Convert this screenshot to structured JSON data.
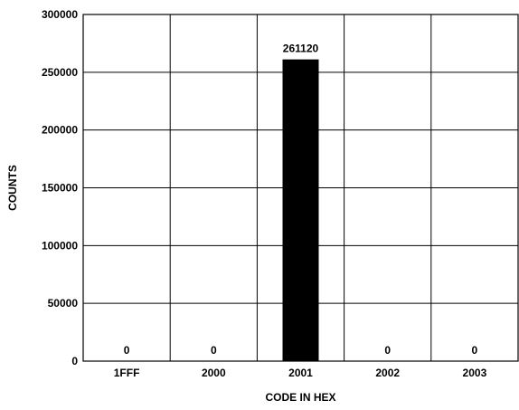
{
  "chart_data": {
    "type": "bar",
    "title": "",
    "xlabel": "CODE IN HEX",
    "ylabel": "COUNTS",
    "categories": [
      "1FFF",
      "2000",
      "2001",
      "2002",
      "2003"
    ],
    "values": [
      0,
      0,
      261120,
      0,
      0
    ],
    "data_labels": [
      "0",
      "0",
      "261120",
      "0",
      "0"
    ],
    "ylim": [
      0,
      300000
    ],
    "yticks": [
      0,
      50000,
      100000,
      150000,
      200000,
      250000,
      300000
    ],
    "ytick_labels": [
      "0",
      "50000",
      "100000",
      "150000",
      "200000",
      "250000",
      "300000"
    ],
    "grid": true,
    "legend": "none",
    "bar_color": "#000000",
    "grid_color": "#000000"
  }
}
